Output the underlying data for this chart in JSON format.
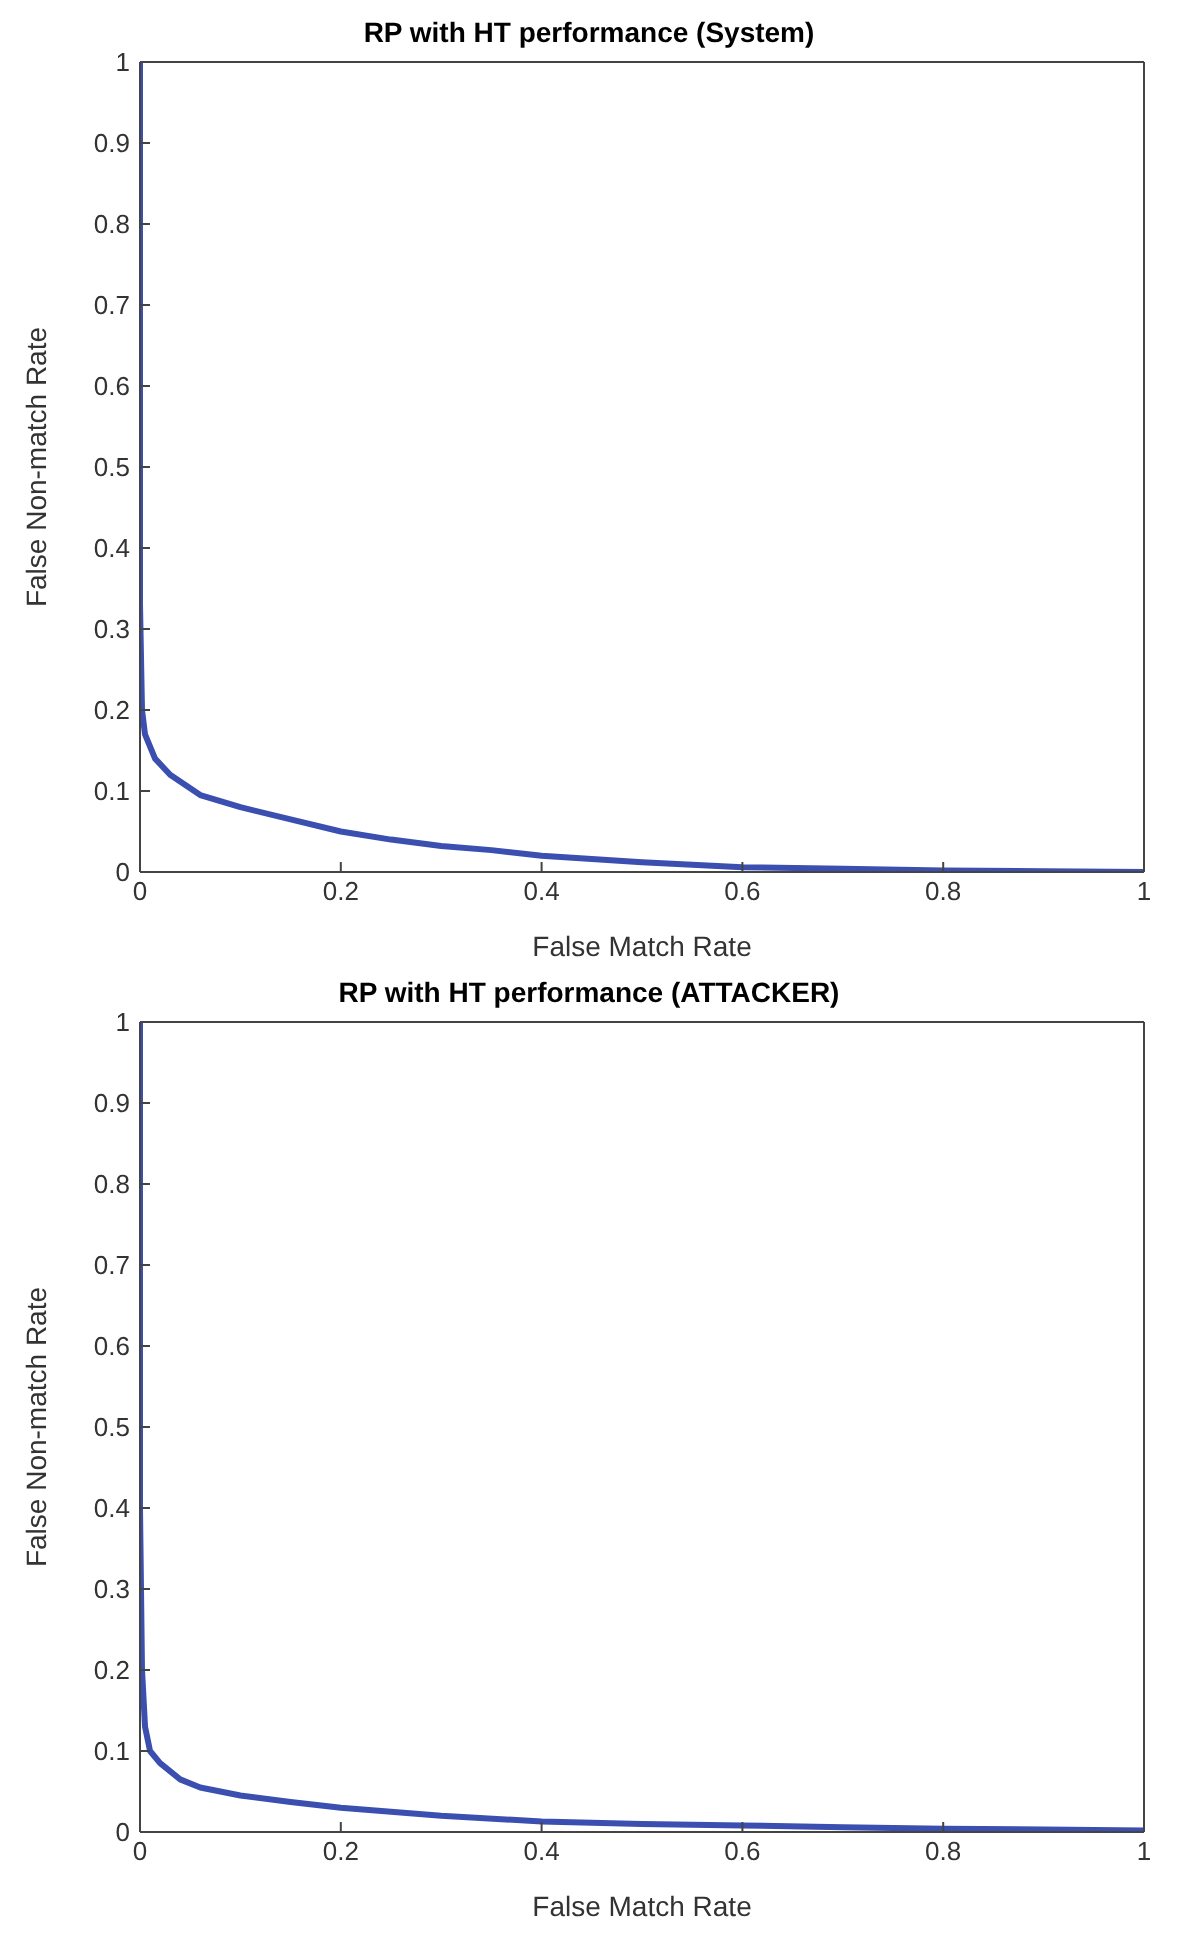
{
  "chart_data": [
    {
      "type": "line",
      "title": "RP with HT performance (System)",
      "xlabel": "False Match Rate",
      "ylabel": "False Non-match Rate",
      "x": [
        0,
        0,
        0.002,
        0.005,
        0.015,
        0.03,
        0.06,
        0.1,
        0.15,
        0.2,
        0.25,
        0.3,
        0.35,
        0.4,
        0.5,
        0.6,
        0.7,
        0.8,
        0.9,
        1
      ],
      "series": [
        {
          "color": "#3a4fb0",
          "values": [
            1,
            0.33,
            0.2,
            0.17,
            0.14,
            0.12,
            0.095,
            0.08,
            0.065,
            0.05,
            0.04,
            0.032,
            0.027,
            0.02,
            0.012,
            0.006,
            0.004,
            0.002,
            0.001,
            0
          ]
        }
      ],
      "xlim": [
        0,
        1
      ],
      "xticks": [
        0,
        0.2,
        0.4,
        0.6,
        0.8,
        1
      ],
      "ylim": [
        0,
        1
      ],
      "yticks": [
        0,
        0.1,
        0.2,
        0.3,
        0.4,
        0.5,
        0.6,
        0.7,
        0.8,
        0.9,
        1
      ],
      "grid": false,
      "legend": false,
      "marker": "none",
      "line_style": "solid"
    },
    {
      "type": "line",
      "title": "RP with HT performance (ATTACKER)",
      "xlabel": "False Match Rate",
      "ylabel": "False Non-match Rate",
      "x": [
        0,
        0,
        0.002,
        0.005,
        0.01,
        0.02,
        0.04,
        0.06,
        0.1,
        0.15,
        0.2,
        0.3,
        0.4,
        0.5,
        0.6,
        0.7,
        0.8,
        0.9,
        1
      ],
      "series": [
        {
          "color": "#3a4fb0",
          "values": [
            1,
            0.4,
            0.2,
            0.13,
            0.1,
            0.085,
            0.065,
            0.055,
            0.045,
            0.037,
            0.03,
            0.02,
            0.013,
            0.01,
            0.008,
            0.006,
            0.004,
            0.003,
            0.002
          ]
        }
      ],
      "xlim": [
        0,
        1
      ],
      "xticks": [
        0,
        0.2,
        0.4,
        0.6,
        0.8,
        1
      ],
      "ylim": [
        0,
        1
      ],
      "yticks": [
        0,
        0.1,
        0.2,
        0.3,
        0.4,
        0.5,
        0.6,
        0.7,
        0.8,
        0.9,
        1
      ],
      "grid": false,
      "legend": false,
      "marker": "none",
      "line_style": "solid"
    }
  ]
}
